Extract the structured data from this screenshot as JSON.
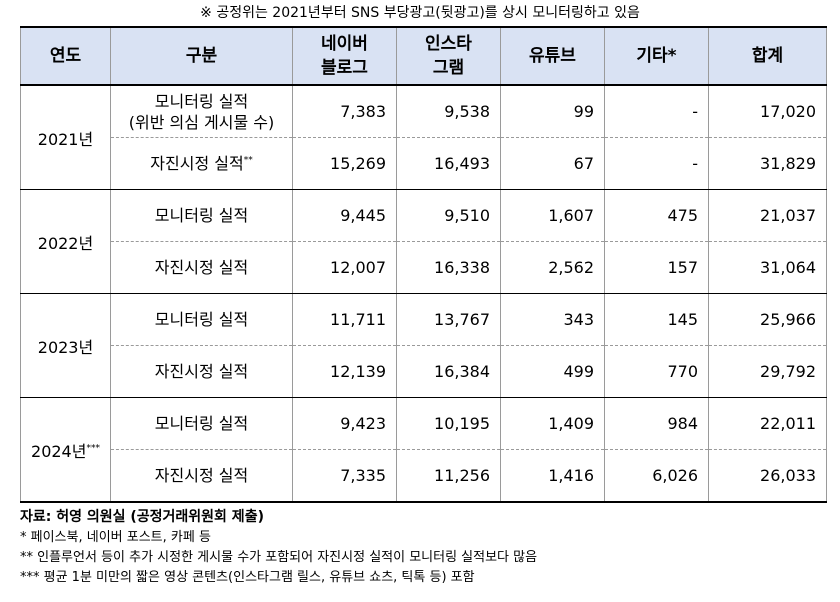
{
  "top_note": "※ 공정위는 2021년부터 SNS 부당광고(뒷광고)를 상시 모니터링하고 있음",
  "table": {
    "headers": {
      "year": "연도",
      "category": "구분",
      "naver_line1": "네이버",
      "naver_line2": "블로그",
      "insta_line1": "인스타",
      "insta_line2": "그램",
      "youtube": "유튜브",
      "other": "기타*",
      "total": "합계"
    },
    "years": [
      {
        "label": "2021년",
        "sup": "",
        "monitoring": {
          "label": "모니터링 실적",
          "sublabel": "(위반 의심 게시물 수)",
          "naver": "7,383",
          "insta": "9,538",
          "youtube": "99",
          "other": "-",
          "total": "17,020"
        },
        "voluntary": {
          "label": "자진시정 실적",
          "sup": "**",
          "naver": "15,269",
          "insta": "16,493",
          "youtube": "67",
          "other": "-",
          "total": "31,829"
        }
      },
      {
        "label": "2022년",
        "sup": "",
        "monitoring": {
          "label": "모니터링 실적",
          "sublabel": "",
          "naver": "9,445",
          "insta": "9,510",
          "youtube": "1,607",
          "other": "475",
          "total": "21,037"
        },
        "voluntary": {
          "label": "자진시정 실적",
          "sup": "",
          "naver": "12,007",
          "insta": "16,338",
          "youtube": "2,562",
          "other": "157",
          "total": "31,064"
        }
      },
      {
        "label": "2023년",
        "sup": "",
        "monitoring": {
          "label": "모니터링 실적",
          "sublabel": "",
          "naver": "11,711",
          "insta": "13,767",
          "youtube": "343",
          "other": "145",
          "total": "25,966"
        },
        "voluntary": {
          "label": "자진시정 실적",
          "sup": "",
          "naver": "12,139",
          "insta": "16,384",
          "youtube": "499",
          "other": "770",
          "total": "29,792"
        }
      },
      {
        "label": "2024년",
        "sup": "***",
        "monitoring": {
          "label": "모니터링 실적",
          "sublabel": "",
          "naver": "9,423",
          "insta": "10,195",
          "youtube": "1,409",
          "other": "984",
          "total": "22,011"
        },
        "voluntary": {
          "label": "자진시정 실적",
          "sup": "",
          "naver": "7,335",
          "insta": "11,256",
          "youtube": "1,416",
          "other": "6,026",
          "total": "26,033"
        }
      }
    ]
  },
  "source": "자료: 허영 의원실 (공정거래위원회 제출)",
  "footnotes": [
    "* 페이스북, 네이버 포스트, 카페 등",
    "** 인플루언서 등이 추가 시정한 게시물 수가 포함되어 자진시정 실적이 모니터링 실적보다 많음",
    "*** 평균 1분 미만의 짧은 영상 콘텐츠(인스타그램 릴스, 유튜브 쇼츠, 틱톡 등) 포함"
  ]
}
